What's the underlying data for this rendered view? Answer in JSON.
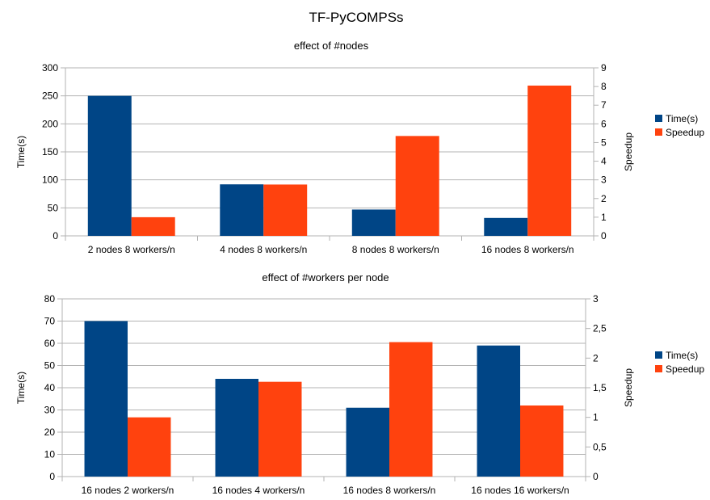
{
  "title": "TF-PyCOMPSs",
  "colors": {
    "time": "#004586",
    "speedup": "#ff420e"
  },
  "chart_data": [
    {
      "type": "bar",
      "title": "effect of #nodes",
      "categories": [
        "2 nodes 8 workers/n",
        "4 nodes 8 workers/n",
        "8 nodes 8 workers/n",
        "16 nodes 8 workers/n"
      ],
      "ylabel": "Time(s)",
      "y2label": "Speedup",
      "ylim": [
        0,
        300
      ],
      "yticks": [
        "0",
        "50",
        "100",
        "150",
        "200",
        "250",
        "300"
      ],
      "y2lim": [
        0,
        9
      ],
      "y2ticks": [
        "0",
        "1",
        "2",
        "3",
        "4",
        "5",
        "6",
        "7",
        "8",
        "9"
      ],
      "grid": true,
      "legend": "right",
      "series": [
        {
          "name": "Time(s)",
          "axis": "left",
          "color": "#004586",
          "values": [
            250,
            92,
            47,
            32
          ]
        },
        {
          "name": "Speedup",
          "axis": "right",
          "color": "#ff420e",
          "values": [
            1.0,
            2.75,
            5.35,
            8.05
          ]
        }
      ]
    },
    {
      "type": "bar",
      "title": "effect of #workers per node",
      "categories": [
        "16 nodes  2 workers/n",
        "16 nodes  4 workers/n",
        "16 nodes  8 workers/n",
        "16 nodes  16 workers/n"
      ],
      "ylabel": "Time(s)",
      "y2label": "Speedup",
      "ylim": [
        0,
        80
      ],
      "yticks": [
        "0",
        "10",
        "20",
        "30",
        "40",
        "50",
        "60",
        "70",
        "80"
      ],
      "y2lim": [
        0,
        3
      ],
      "y2ticks": [
        "0",
        "0,5",
        "1",
        "1,5",
        "2",
        "2,5",
        "3"
      ],
      "grid": true,
      "legend": "right",
      "series": [
        {
          "name": "Time(s)",
          "axis": "left",
          "color": "#004586",
          "values": [
            70,
            44,
            31,
            59
          ]
        },
        {
          "name": "Speedup",
          "axis": "right",
          "color": "#ff420e",
          "values": [
            1.0,
            1.6,
            2.27,
            1.2
          ]
        }
      ]
    }
  ]
}
